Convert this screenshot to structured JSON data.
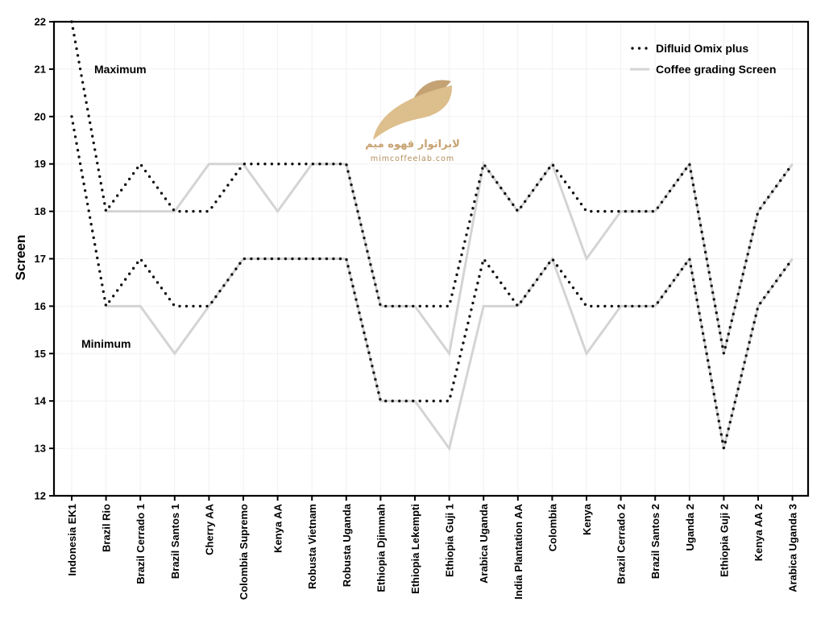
{
  "chart_data": {
    "type": "line",
    "ylabel": "Screen",
    "ylim": [
      12,
      22
    ],
    "yticks": [
      12,
      13,
      14,
      15,
      16,
      17,
      18,
      19,
      20,
      21,
      22
    ],
    "grid": true,
    "legend_position": "top-right",
    "categories": [
      "Indonesia EK1",
      "Brazil Rio",
      "Brazil Cerrado 1",
      "Brazil Santos 1",
      "Cherry AA",
      "Colombia Supremo",
      "Kenya AA",
      "Robusta Vietnam",
      "Robusta Uganda",
      "Ethiopia Djimmah",
      "Ethiopia Lekempti",
      "Ethiopia Guji 1",
      "Arabica Uganda",
      "India Plantation AA",
      "Colombia",
      "Kenya",
      "Brazil Cerrado 2",
      "Brazil Santos 2",
      "Uganda 2",
      "Ethiopia Guji 2",
      "Kenya AA 2",
      "Arabica Uganda 3"
    ],
    "series": [
      {
        "name": "Difluid Omix plus",
        "group": "Maximum",
        "style": "dotted",
        "color": "#111111",
        "values": [
          22,
          18,
          19,
          18,
          18,
          19,
          19,
          19,
          19,
          16,
          16,
          16,
          19,
          18,
          19,
          18,
          18,
          18,
          19,
          15,
          18,
          19
        ]
      },
      {
        "name": "Difluid Omix plus",
        "group": "Minimum",
        "style": "dotted",
        "color": "#111111",
        "values": [
          20,
          16,
          17,
          16,
          16,
          17,
          17,
          17,
          17,
          14,
          14,
          14,
          17,
          16,
          17,
          16,
          16,
          16,
          17,
          13,
          16,
          17
        ]
      },
      {
        "name": "Coffee grading Screen",
        "group": "Maximum",
        "style": "solid",
        "color": "#d4d4d4",
        "values": [
          null,
          18,
          18,
          18,
          19,
          19,
          18,
          19,
          19,
          16,
          16,
          15,
          19,
          18,
          19,
          17,
          18,
          18,
          19,
          15,
          18,
          19
        ]
      },
      {
        "name": "Coffee grading Screen",
        "group": "Minimum",
        "style": "solid",
        "color": "#d4d4d4",
        "values": [
          null,
          16,
          16,
          15,
          16,
          17,
          17,
          17,
          17,
          14,
          14,
          13,
          16,
          16,
          17,
          15,
          16,
          16,
          17,
          13,
          16,
          17
        ]
      }
    ],
    "annotations": [
      "Maximum",
      "Minimum"
    ],
    "legend": [
      "Difluid Omix plus",
      "Coffee grading Screen"
    ]
  },
  "logo": {
    "name_text": "لابراتوار قهوه میم",
    "url_text": "mimcoffeelab.com",
    "colors": [
      "#c4a274",
      "#ddbf8d"
    ]
  }
}
